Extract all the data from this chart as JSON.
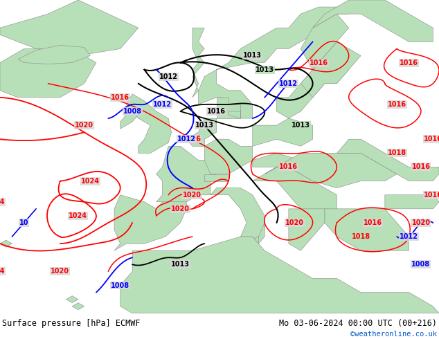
{
  "title_left": "Surface pressure [hPa] ECMWF",
  "title_right": "Mo 03-06-2024 00:00 UTC (00+216)",
  "credit": "©weatheronline.co.uk",
  "credit_color": "#0055cc",
  "bg_color": "#ffffff",
  "ocean_color": "#d8d8d8",
  "land_color": "#b8e0b8",
  "land_dark_color": "#90c890",
  "coast_color": "#888888",
  "footer_bg": "#e0e0e0",
  "footer_text_color": "#000000",
  "figsize": [
    6.34,
    4.9
  ],
  "dpi": 100
}
